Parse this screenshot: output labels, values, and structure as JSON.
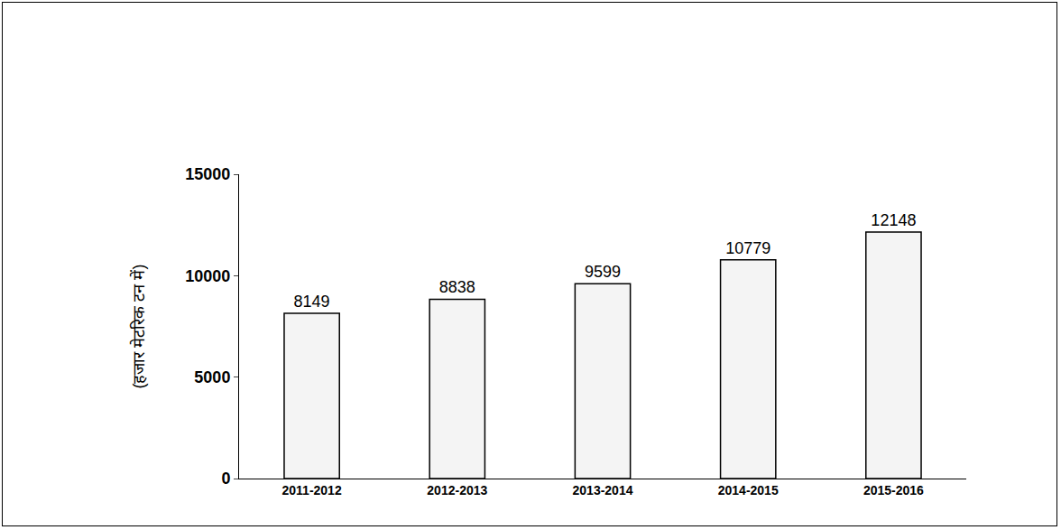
{
  "chart_data": {
    "type": "bar",
    "y_label": "(हजार मेटरिक टन में)",
    "categories": [
      "2011-2012",
      "2012-2013",
      "2013-2014",
      "2014-2015",
      "2015-2016"
    ],
    "values": [
      8149,
      8838,
      9599,
      10779,
      12148
    ],
    "color": "#f4f4f4",
    "ylim": [
      0,
      15000
    ],
    "yticks": [
      0,
      5000,
      10000,
      15000
    ],
    "grid": false,
    "data_labels": true
  }
}
